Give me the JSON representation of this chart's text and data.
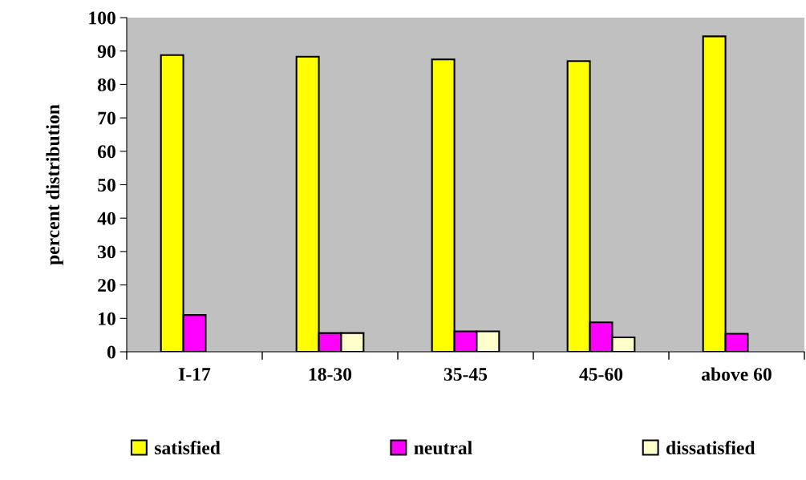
{
  "chart_data": {
    "type": "bar",
    "ylabel": "percent distribution",
    "categories": [
      "I-17",
      "18-30",
      "35-45",
      "45-60",
      "above 60"
    ],
    "series": [
      {
        "name": "satisfied",
        "color": "#ffff00",
        "values": [
          88.8,
          88.3,
          87.5,
          87.0,
          94.4
        ]
      },
      {
        "name": "neutral",
        "color": "#ff00ff",
        "values": [
          11.0,
          5.6,
          6.1,
          8.8,
          5.4
        ]
      },
      {
        "name": "dissatisfied",
        "color": "#ffffcc",
        "values": [
          null,
          5.6,
          6.1,
          4.3,
          null
        ]
      }
    ],
    "ylim": [
      0,
      100
    ],
    "yticks": [
      0,
      10,
      20,
      30,
      40,
      50,
      60,
      70,
      80,
      90,
      100
    ],
    "grid": false,
    "legend": "bottom"
  }
}
